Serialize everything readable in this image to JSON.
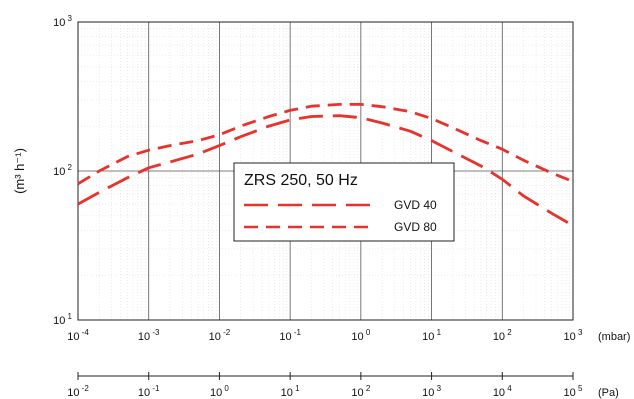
{
  "chart_data": {
    "type": "line",
    "title": "ZRS 250, 50 Hz",
    "ylabel": "(m³ h⁻¹)",
    "y_scale": "log",
    "ylim": [
      10,
      1000
    ],
    "y_ticks": [
      {
        "base": "10",
        "exp": "3",
        "value": 1000
      },
      {
        "base": "10",
        "exp": "2",
        "value": 100
      },
      {
        "base": "10",
        "exp": "1",
        "value": 10
      }
    ],
    "x_scale": "log",
    "xlabel": "(mbar)",
    "xlim": [
      0.0001,
      1000
    ],
    "x_ticks": [
      {
        "base": "10",
        "exp": "-4",
        "value": 0.0001
      },
      {
        "base": "10",
        "exp": "-3",
        "value": 0.001
      },
      {
        "base": "10",
        "exp": "-2",
        "value": 0.01
      },
      {
        "base": "10",
        "exp": "-1",
        "value": 0.1
      },
      {
        "base": "10",
        "exp": "0",
        "value": 1
      },
      {
        "base": "10",
        "exp": "1",
        "value": 10
      },
      {
        "base": "10",
        "exp": "2",
        "value": 100
      },
      {
        "base": "10",
        "exp": "3",
        "value": 1000
      }
    ],
    "secondary_xlabel": "(Pa)",
    "secondary_xlim": [
      0.01,
      100000
    ],
    "secondary_x_ticks": [
      {
        "base": "10",
        "exp": "-2",
        "value": 0.01
      },
      {
        "base": "10",
        "exp": "-1",
        "value": 0.1
      },
      {
        "base": "10",
        "exp": "0",
        "value": 1
      },
      {
        "base": "10",
        "exp": "1",
        "value": 10
      },
      {
        "base": "10",
        "exp": "2",
        "value": 100
      },
      {
        "base": "10",
        "exp": "3",
        "value": 1000
      },
      {
        "base": "10",
        "exp": "4",
        "value": 10000
      },
      {
        "base": "10",
        "exp": "5",
        "value": 100000
      }
    ],
    "grid": true,
    "legend_placement": "center",
    "line_color": "#e8322b",
    "series": [
      {
        "name": "GVD 40",
        "dash": "long",
        "x": [
          0.0001,
          0.0002,
          0.0005,
          0.001,
          0.002,
          0.005,
          0.01,
          0.02,
          0.05,
          0.1,
          0.2,
          0.5,
          1,
          2,
          5,
          10,
          20,
          50,
          100,
          200,
          500,
          1000
        ],
        "y": [
          60,
          72,
          90,
          105,
          115,
          130,
          148,
          170,
          200,
          220,
          232,
          235,
          228,
          210,
          185,
          160,
          135,
          108,
          88,
          68,
          52,
          43
        ]
      },
      {
        "name": "GVD 80",
        "dash": "medium",
        "x": [
          0.0001,
          0.0002,
          0.0005,
          0.001,
          0.002,
          0.005,
          0.01,
          0.02,
          0.05,
          0.1,
          0.2,
          0.5,
          1,
          2,
          5,
          10,
          20,
          50,
          100,
          200,
          500,
          1000
        ],
        "y": [
          82,
          100,
          125,
          138,
          148,
          160,
          175,
          200,
          232,
          255,
          272,
          280,
          280,
          270,
          250,
          225,
          195,
          160,
          140,
          118,
          97,
          85
        ]
      }
    ]
  }
}
